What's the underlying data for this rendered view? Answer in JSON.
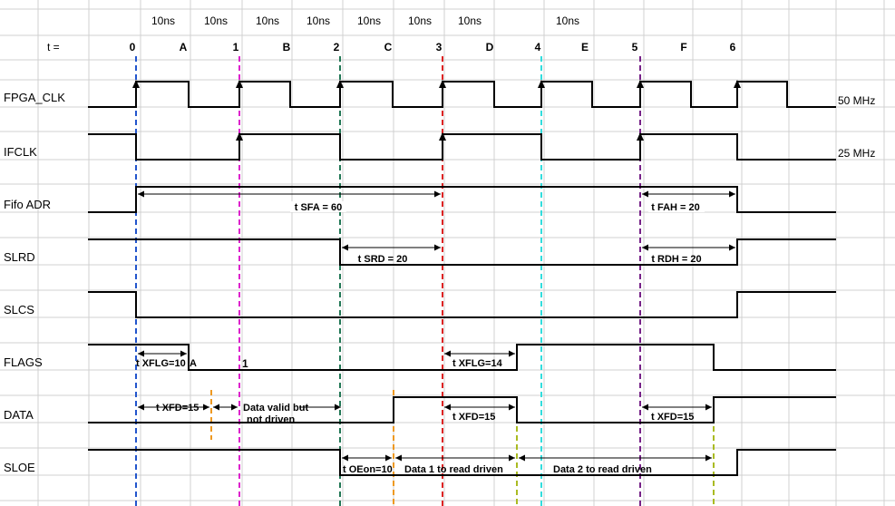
{
  "time_label": "t =",
  "period_labels": [
    "10ns",
    "10ns",
    "10ns",
    "10ns",
    "10ns",
    "10ns",
    "10ns",
    "10ns"
  ],
  "tick_labels": [
    "0",
    "A",
    "1",
    "B",
    "2",
    "C",
    "3",
    "D",
    "4",
    "E",
    "5",
    "F",
    "6"
  ],
  "signals": [
    {
      "name": "FPGA_CLK",
      "freq": "50 MHz"
    },
    {
      "name": "IFCLK",
      "freq": "25 MHz"
    },
    {
      "name": "Fifo ADR",
      "freq": ""
    },
    {
      "name": "SLRD",
      "freq": ""
    },
    {
      "name": "SLCS",
      "freq": ""
    },
    {
      "name": "FLAGS",
      "freq": ""
    },
    {
      "name": "DATA",
      "freq": ""
    },
    {
      "name": "SLOE",
      "freq": ""
    }
  ],
  "annotations": {
    "t_sfa": "t SFA = 60",
    "t_fah": "t FAH = 20",
    "t_srd": "t SRD = 20",
    "t_rdh": "t RDH = 20",
    "t_xflg_a": "t XFLG=10",
    "flags_a": "A",
    "flags_1": "1",
    "t_xflg_14": "t XFLG=14",
    "t_xfd_15_a": "t XFD=15",
    "data_valid_1": "Data valid but",
    "data_valid_2": "not driven",
    "t_xfd_15_b": "t XFD=15",
    "t_xfd_15_c": "t XFD=15",
    "t_oeon": "t OEon=10",
    "data1": "Data 1 to read driven",
    "data2": "Data 2 to read driven"
  },
  "colors": {
    "marker_0": "#2255cc",
    "marker_1": "#dd22cc",
    "marker_2": "#227755",
    "marker_3": "#dd2222",
    "marker_4": "#33dddd",
    "marker_5": "#772288",
    "marker_orange": "#ee9922",
    "marker_olive": "#aabb22"
  }
}
